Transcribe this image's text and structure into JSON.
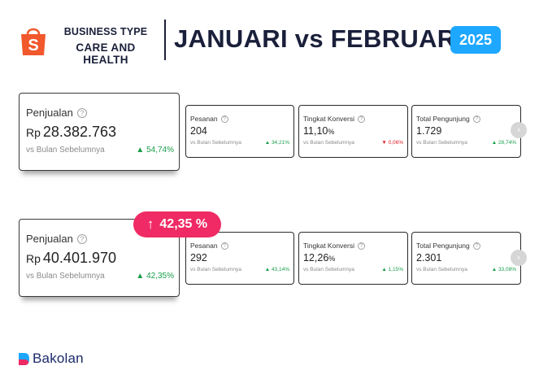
{
  "header": {
    "business_type_label": "BUSINESS TYPE",
    "business_type_value": "CARE AND HEALTH",
    "title": "JANUARI vs FEBRUARI",
    "year": "2025",
    "logo_icon": "shopee-bag-icon"
  },
  "january": {
    "sales": {
      "label": "Penjualan",
      "currency": "Rp",
      "value": "28.382.763",
      "compare": "vs Bulan Sebelumnya",
      "change": "▲ 54,74%",
      "direction": "up"
    },
    "orders": {
      "label": "Pesanan",
      "value": "204",
      "unit": "",
      "compare": "vs Bulan Sebelumnya",
      "change": "▲ 34,21%",
      "direction": "up"
    },
    "conversion": {
      "label": "Tingkat Konversi",
      "value": "11,10",
      "unit": "%",
      "compare": "vs Bulan Sebelumnya",
      "change": "▼ 0,06%",
      "direction": "down"
    },
    "visitors": {
      "label": "Total Pengunjung",
      "value": "1.729",
      "unit": "",
      "compare": "vs Bulan Sebelumnya",
      "change": "▲ 28,74%",
      "direction": "up"
    }
  },
  "february": {
    "growth_badge": "42,35 %",
    "sales": {
      "label": "Penjualan",
      "currency": "Rp",
      "value": "40.401.970",
      "compare": "vs Bulan Sebelumnya",
      "change": "▲ 42,35%",
      "direction": "up"
    },
    "orders": {
      "label": "Pesanan",
      "value": "292",
      "unit": "",
      "compare": "vs Bulan Sebelumnya",
      "change": "▲ 43,14%",
      "direction": "up"
    },
    "conversion": {
      "label": "Tingkat Konversi",
      "value": "12,26",
      "unit": "%",
      "compare": "vs Bulan Sebelumnya",
      "change": "▲ 1,15%",
      "direction": "up"
    },
    "visitors": {
      "label": "Total Pengunjung",
      "value": "2.301",
      "unit": "",
      "compare": "vs Bulan Sebelumnya",
      "change": "▲ 33,08%",
      "direction": "up"
    }
  },
  "footer": {
    "brand": "Bakolan"
  },
  "colors": {
    "accent_blue": "#1ea7ff",
    "growth_pink": "#ef2a64",
    "up_green": "#1a9e4b",
    "down_red": "#e0202a",
    "shopee_orange": "#f1582c",
    "navy": "#1a1f3a"
  }
}
